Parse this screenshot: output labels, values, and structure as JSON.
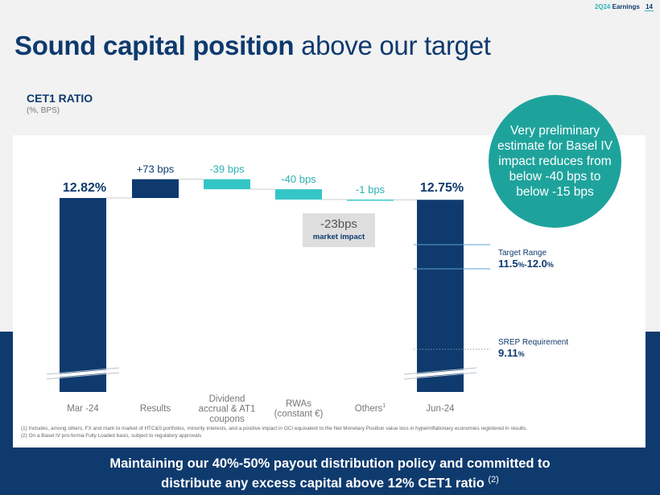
{
  "header": {
    "brand": "2Q24",
    "section": "Earnings",
    "page_number": "14"
  },
  "title": {
    "bold": "Sound capital position",
    "regular": " above our target"
  },
  "chart_data": {
    "type": "waterfall",
    "title": "CET1 RATIO",
    "subtitle": "(%, BPS)",
    "categories": [
      "Mar -24",
      "Results",
      "Dividend accrual & AT1 coupons",
      "RWAs (constant €)",
      "Others",
      "Jun-24"
    ],
    "category_superscripts": [
      "",
      "",
      "",
      "",
      "1",
      ""
    ],
    "start_value": 12.82,
    "end_value": 12.75,
    "deltas_bps": [
      73,
      -39,
      -40,
      -1
    ],
    "bar_labels": [
      "12.82%",
      "+73 bps",
      "-39 bps",
      "-40 bps",
      "-1 bps",
      "12.75%"
    ],
    "axis_break": true,
    "colors": {
      "total": "#0e3a6e",
      "positive": "#0e3a6e",
      "negative": "#34c6c6"
    }
  },
  "market_impact": {
    "value": "-23bps",
    "label": "market impact"
  },
  "basel_note": "Very preliminary estimate for Basel IV impact reduces from below -40 bps to below -15 bps",
  "target_range": {
    "label": "Target Range",
    "value_main": "11.5",
    "value_mid": "%-",
    "value_main2": "12.0",
    "value_pct": "%",
    "low": 11.5,
    "high": 12.0
  },
  "srep": {
    "label": "SREP Requirement",
    "value_main": "9.11",
    "value_pct": "%",
    "value": 9.11
  },
  "footnotes": [
    "(1) Includes, among others, FX and mark to market of HTC&S portfolios, minority interests, and a positive impact in OCI equivalent to the Net Monetary Position value loss in hyperinflationary economies registered in results.",
    "(2) On a Basel IV pro-forma Fully Loaded basis, subject to regulatory approvals"
  ],
  "bottom_message": {
    "line1": "Maintaining our 40%-50% payout distribution policy and committed to",
    "line2": "distribute any excess capital above 12% CET1 ratio ",
    "sup": "(2)"
  }
}
